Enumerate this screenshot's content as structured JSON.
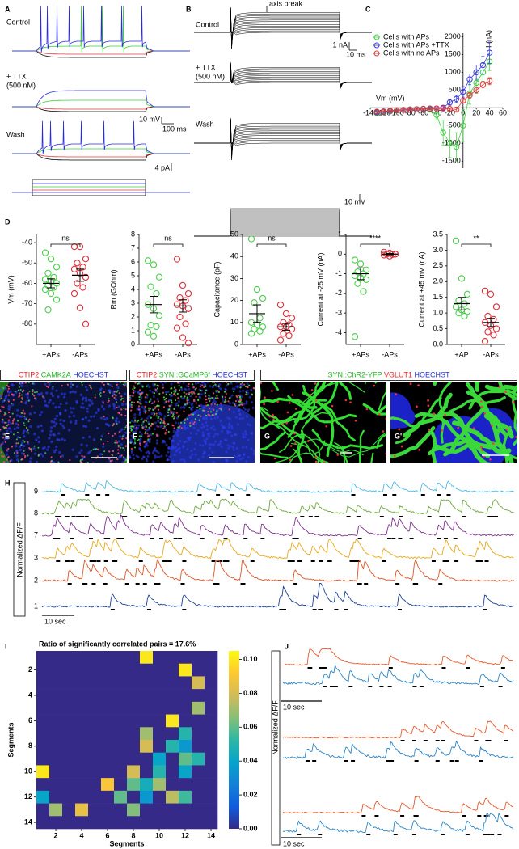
{
  "figure": {
    "panel_labels": [
      "A",
      "B",
      "C",
      "D",
      "E",
      "F",
      "G",
      "G'",
      "H",
      "I",
      "J"
    ],
    "a": {
      "conditions": [
        "Control",
        "+ TTX",
        "(500 nM)",
        "Wash"
      ],
      "scale_v": "10 mV",
      "scale_t": "100 ms",
      "scale_i": "4 pA"
    },
    "b": {
      "conditions": [
        "Control",
        "+ TTX",
        "(500 nM)",
        "Wash"
      ],
      "axis_break": "axis break",
      "scale_i": "1 nA",
      "scale_t": "10 ms",
      "scale_v": "10 mV"
    },
    "stain_headers": [
      [
        {
          "text": "CTIP2",
          "color": "#e8252a"
        },
        {
          "text": "CAMK2A",
          "color": "#22b422"
        },
        {
          "text": "HOECHST",
          "color": "#2430d8"
        }
      ],
      [
        {
          "text": "CTIP2",
          "color": "#e8252a"
        },
        {
          "text": "SYN::GCaMP6f",
          "color": "#22b422"
        },
        {
          "text": "HOECHST",
          "color": "#2430d8"
        }
      ],
      [
        {
          "text": "SYN::ChR2-YFP",
          "color": "#22b422"
        },
        {
          "text": "VGLUT1",
          "color": "#e8252a"
        },
        {
          "text": "HOECHST",
          "color": "#2430d8"
        }
      ]
    ],
    "h": {
      "ylabel": "Normalized ΔF/F",
      "trace_labels": [
        "9",
        "8",
        "7",
        "3",
        "2",
        "1"
      ],
      "trace_colors": [
        "#4cb8e4",
        "#6fa83c",
        "#7e2f8e",
        "#e8a91a",
        "#de5424",
        "#1c3f96"
      ],
      "scale": "10 sec"
    },
    "j": {
      "ylabel": "Normalized ΔF/F",
      "scale": "10 sec",
      "trace_colors": [
        "#e8582a",
        "#2a84c6"
      ]
    }
  },
  "chart_data": [
    {
      "type": "line",
      "xlabel": "Vm (mV)",
      "ylabel": "I (nA)",
      "legend": "upper left",
      "x": [
        -130,
        -120,
        -110,
        -100,
        -90,
        -80,
        -70,
        -60,
        -50,
        -40,
        -30,
        -20,
        -10,
        0,
        10,
        20,
        30,
        40
      ],
      "series": [
        {
          "name": "Cells with APs",
          "color": "#3ccf3c",
          "values": [
            -150,
            -120,
            -100,
            -80,
            -60,
            -50,
            -40,
            -30,
            -50,
            -200,
            -700,
            -1000,
            -1100,
            -500,
            400,
            700,
            1000,
            1300
          ],
          "errors": [
            40,
            40,
            30,
            30,
            30,
            30,
            30,
            30,
            50,
            150,
            350,
            400,
            400,
            450,
            300,
            300,
            250,
            250
          ]
        },
        {
          "name": "Cells with APs +TTX",
          "color": "#3a3ae0",
          "values": [
            -130,
            -110,
            -90,
            -70,
            -60,
            -50,
            -40,
            -30,
            -20,
            -20,
            0,
            150,
            250,
            450,
            800,
            1000,
            1200,
            1550
          ],
          "errors": [
            30,
            30,
            30,
            30,
            30,
            30,
            30,
            30,
            30,
            30,
            50,
            80,
            100,
            150,
            150,
            200,
            250,
            300
          ]
        },
        {
          "name": "Cells with no APs",
          "color": "#e03a3a",
          "values": [
            -110,
            -100,
            -80,
            -70,
            -60,
            -50,
            -40,
            -30,
            -30,
            -20,
            -20,
            -30,
            -50,
            200,
            350,
            500,
            650,
            750
          ],
          "errors": [
            20,
            20,
            20,
            20,
            20,
            20,
            20,
            20,
            20,
            20,
            20,
            30,
            40,
            60,
            80,
            80,
            90,
            100
          ]
        }
      ],
      "xlim": [
        -140,
        60
      ],
      "ylim": [
        -1700,
        2100
      ],
      "xticks": [
        -140,
        -120,
        -100,
        -80,
        -60,
        -40,
        -20,
        0,
        20,
        40,
        60
      ],
      "yticks": [
        -1500,
        -1000,
        -500,
        500,
        1000,
        1500,
        2000
      ]
    },
    {
      "type": "strip",
      "ylabel": "Vm (mV)",
      "categories": [
        "+APs",
        "-APs"
      ],
      "significance": "ns",
      "series": [
        {
          "color": "#4ccc4c",
          "values": [
            -45,
            -48,
            -52,
            -55,
            -57,
            -58,
            -59,
            -60,
            -61,
            -62,
            -63,
            -65,
            -68,
            -73
          ],
          "mean": -60,
          "sem": 2.2
        },
        {
          "color": "#e0303a",
          "values": [
            -42,
            -42,
            -48,
            -50,
            -52,
            -53,
            -55,
            -57,
            -60,
            -62,
            -65,
            -72,
            -80
          ],
          "mean": -56,
          "sem": 3
        }
      ],
      "ylim": [
        -90,
        -36
      ],
      "yticks": [
        -80,
        -70,
        -60,
        -50,
        -40
      ]
    },
    {
      "type": "strip",
      "ylabel": "Rm (GOhm)",
      "categories": [
        "+APs",
        "-APs"
      ],
      "significance": "ns",
      "series": [
        {
          "color": "#4ccc4c",
          "values": [
            6.1,
            5.8,
            4.9,
            4.2,
            3.7,
            2.9,
            2.6,
            2.1,
            1.4,
            1.3,
            0.9,
            0.6
          ],
          "mean": 2.9,
          "sem": 0.6
        },
        {
          "color": "#e0303a",
          "values": [
            6.2,
            4.3,
            3.7,
            3.4,
            3.2,
            2.9,
            2.8,
            2.6,
            2,
            1.5,
            1.2,
            0.5,
            0.1
          ],
          "mean": 2.8,
          "sem": 0.45
        }
      ],
      "ylim": [
        0,
        8
      ],
      "yticks": [
        0,
        1,
        2,
        3,
        4,
        5,
        6,
        7,
        8
      ]
    },
    {
      "type": "strip",
      "ylabel": "Capacitance (pF)",
      "categories": [
        "+APs",
        "-APs"
      ],
      "significance": "ns",
      "series": [
        {
          "color": "#4ccc4c",
          "values": [
            48,
            25,
            21,
            19,
            12,
            10,
            9,
            8,
            7,
            6,
            5
          ],
          "mean": 14,
          "sem": 4
        },
        {
          "color": "#e0303a",
          "values": [
            18,
            14,
            12,
            10,
            9,
            8,
            8,
            7,
            5,
            4,
            2
          ],
          "mean": 8,
          "sem": 1.5
        }
      ],
      "ylim": [
        0,
        50
      ],
      "yticks": [
        0,
        10,
        20,
        30,
        40,
        50
      ]
    },
    {
      "type": "strip",
      "ylabel": "Current at -25 mV (nA)",
      "categories": [
        "+APs",
        "-APs"
      ],
      "significance": "****",
      "series": [
        {
          "color": "#4ccc4c",
          "values": [
            -0.3,
            -0.5,
            -0.8,
            -0.9,
            -1,
            -1.1,
            -1.2,
            -1.3,
            -1.5,
            -1.9,
            -4.2
          ],
          "mean": -1,
          "sem": 0.3
        },
        {
          "color": "#e0303a",
          "values": [
            0.1,
            0.05,
            0,
            0,
            -0.02,
            -0.05,
            -0.1,
            0
          ],
          "mean": 0,
          "sem": 0.03
        }
      ],
      "ylim": [
        -4.6,
        1
      ],
      "yticks": [
        -4,
        -3,
        -2,
        -1,
        0,
        1
      ]
    },
    {
      "type": "strip",
      "ylabel": "Current at +45 mV (nA)",
      "categories": [
        "+AP",
        "-APs"
      ],
      "significance": "**",
      "series": [
        {
          "color": "#4ccc4c",
          "values": [
            3.3,
            2.1,
            1.6,
            1.4,
            1.3,
            1.2,
            1.1,
            1.05,
            1,
            0.9
          ],
          "mean": 1.3,
          "sem": 0.2
        },
        {
          "color": "#e0303a",
          "values": [
            1.7,
            1.6,
            1.2,
            0.9,
            0.8,
            0.7,
            0.6,
            0.5,
            0.4,
            0.3,
            0.1
          ],
          "mean": 0.7,
          "sem": 0.13
        }
      ],
      "ylim": [
        0,
        3.5
      ],
      "yticks": [
        {
          "value": 0,
          "label": "0.0"
        },
        {
          "value": 0.5,
          "label": "0.5"
        },
        {
          "value": 1,
          "label": "1.0"
        },
        {
          "value": 1.5,
          "label": "1.5"
        },
        {
          "value": 2,
          "label": "2.0"
        },
        {
          "value": 2.5,
          "label": "2.5"
        },
        {
          "value": 3,
          "label": "3.0"
        },
        {
          "value": 3.5,
          "label": "3.5"
        }
      ]
    },
    {
      "type": "heatmap",
      "title": "Ratio of significantly correlated pairs = 17.6%",
      "xlabel": "Segments",
      "ylabel": "Segments",
      "z": [
        [
          0,
          0,
          0,
          0,
          0,
          0,
          0,
          0,
          0.1,
          0,
          0,
          0,
          0,
          0
        ],
        [
          0,
          0,
          0,
          0,
          0,
          0,
          0,
          0,
          0,
          0,
          0,
          0.1,
          0,
          0
        ],
        [
          0,
          0,
          0,
          0,
          0,
          0,
          0,
          0,
          0,
          0,
          0,
          0,
          0.08,
          0
        ],
        [
          0,
          0,
          0,
          0,
          0,
          0,
          0,
          0,
          0,
          0,
          0,
          0,
          0,
          0
        ],
        [
          0,
          0,
          0,
          0,
          0,
          0,
          0,
          0,
          0,
          0,
          0,
          0,
          0.07,
          0
        ],
        [
          0,
          0,
          0,
          0,
          0,
          0,
          0,
          0,
          0,
          0,
          0.1,
          0,
          0,
          0
        ],
        [
          0,
          0,
          0,
          0,
          0,
          0,
          0,
          0,
          0.07,
          0,
          0,
          0.05,
          0,
          0
        ],
        [
          0,
          0,
          0,
          0,
          0,
          0,
          0,
          0,
          0.08,
          0,
          0.05,
          0.035,
          0,
          0
        ],
        [
          0,
          0,
          0,
          0,
          0,
          0,
          0,
          0,
          0,
          0.04,
          0,
          0.06,
          0.05,
          0
        ],
        [
          0.1,
          0,
          0,
          0,
          0,
          0,
          0,
          0.08,
          0,
          0.05,
          0,
          0.04,
          0,
          0
        ],
        [
          0,
          0,
          0,
          0,
          0,
          0.09,
          0,
          0.06,
          0.045,
          0.07,
          0,
          0,
          0,
          0
        ],
        [
          0.04,
          0,
          0,
          0,
          0,
          0,
          0.06,
          0,
          0.035,
          0,
          0.075,
          0.055,
          0,
          0
        ],
        [
          0,
          0.07,
          0,
          0.085,
          0,
          0,
          0,
          0.065,
          0,
          0,
          0,
          0,
          0,
          0
        ],
        [
          0,
          0,
          0,
          0,
          0,
          0,
          0,
          0,
          0,
          0,
          0,
          0,
          0,
          0
        ]
      ],
      "xlim": [
        0.5,
        14.5
      ],
      "ylim": [
        14.5,
        0.5
      ],
      "xticks": [
        2,
        4,
        6,
        8,
        10,
        12,
        14
      ],
      "yticks": [
        2,
        4,
        6,
        8,
        10,
        12,
        14
      ],
      "clim": [
        0,
        0.105
      ],
      "cticks": [
        {
          "value": 0,
          "label": "0.00"
        },
        {
          "value": 0.02,
          "label": "0.02"
        },
        {
          "value": 0.04,
          "label": "0.04"
        },
        {
          "value": 0.06,
          "label": "0.06"
        },
        {
          "value": 0.08,
          "label": "0.08"
        },
        {
          "value": 0.1,
          "label": "0.10"
        }
      ]
    }
  ]
}
